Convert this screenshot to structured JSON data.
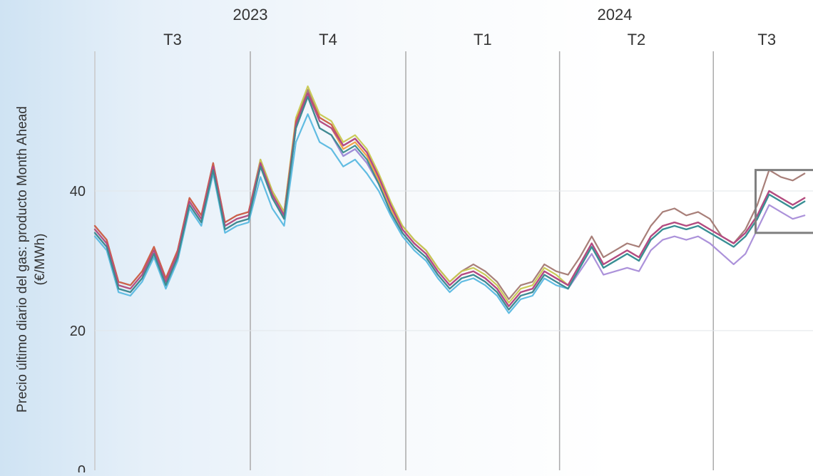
{
  "chart_data": {
    "type": "line",
    "ylabel": "Precio último diario del gas: producto Month Ahead",
    "ylabel_unit": "(€/MWh)",
    "x_range": [
      "2023-07-01",
      "2024-08-31"
    ],
    "ylim": [
      0,
      60
    ],
    "y_ticks": [
      {
        "value": 0,
        "label": "0"
      },
      {
        "value": 20,
        "label": "20"
      },
      {
        "value": 40,
        "label": "40"
      }
    ],
    "years": [
      {
        "label": "2023",
        "date": "2023-10-01"
      },
      {
        "label": "2024",
        "date": "2024-04-01"
      }
    ],
    "quarters": [
      {
        "label": "T3",
        "start": "2023-07-01",
        "end": "2023-10-01"
      },
      {
        "label": "T4",
        "start": "2023-10-01",
        "end": "2024-01-01"
      },
      {
        "label": "T1",
        "start": "2024-01-01",
        "end": "2024-04-01"
      },
      {
        "label": "T2",
        "start": "2024-04-01",
        "end": "2024-07-01"
      },
      {
        "label": "T3",
        "start": "2024-07-01",
        "end": "2024-10-01"
      }
    ],
    "grid": true,
    "legend": "none",
    "highlight_box": {
      "x0": "2024-07-26",
      "x1": "2024-08-31",
      "y0": 34,
      "y1": 43
    },
    "x": [
      "2023-07-01",
      "2023-07-08",
      "2023-07-15",
      "2023-07-22",
      "2023-07-29",
      "2023-08-05",
      "2023-08-12",
      "2023-08-19",
      "2023-08-26",
      "2023-09-02",
      "2023-09-09",
      "2023-09-16",
      "2023-09-23",
      "2023-09-30",
      "2023-10-07",
      "2023-10-14",
      "2023-10-21",
      "2023-10-28",
      "2023-11-04",
      "2023-11-11",
      "2023-11-18",
      "2023-11-25",
      "2023-12-02",
      "2023-12-09",
      "2023-12-16",
      "2023-12-23",
      "2023-12-30",
      "2024-01-06",
      "2024-01-13",
      "2024-01-20",
      "2024-01-27",
      "2024-02-03",
      "2024-02-10",
      "2024-02-17",
      "2024-02-24",
      "2024-03-02",
      "2024-03-09",
      "2024-03-16",
      "2024-03-23",
      "2024-03-30",
      "2024-04-06",
      "2024-04-13",
      "2024-04-20",
      "2024-04-27",
      "2024-05-04",
      "2024-05-11",
      "2024-05-18",
      "2024-05-25",
      "2024-06-01",
      "2024-06-08",
      "2024-06-15",
      "2024-06-22",
      "2024-06-29",
      "2024-07-06",
      "2024-07-13",
      "2024-07-20",
      "2024-07-27",
      "2024-08-03",
      "2024-08-10",
      "2024-08-17",
      "2024-08-24",
      "2024-08-31"
    ],
    "series": [
      {
        "color": "#4a90c8",
        "values": [
          34.0,
          32.0,
          26.0,
          25.5,
          27.5,
          31.0,
          26.5,
          30.5,
          38.0,
          35.5,
          43.0,
          34.5,
          35.5,
          36.0,
          43.5,
          39.0,
          36.0,
          49.0,
          53.5,
          49.0,
          48.0,
          45.0,
          46.0,
          44.0,
          41.0,
          37.0,
          34.0,
          32.0,
          30.5,
          28.0,
          26.0,
          27.5,
          28.0,
          27.0,
          25.5,
          23.0,
          25.0,
          25.5,
          28.0,
          27.0,
          26.0,
          29.0,
          32.0,
          29.0,
          30.0,
          31.0,
          30.0,
          33.0,
          34.5,
          35.0,
          34.5,
          35.0,
          34.0,
          33.0,
          32.0,
          33.5,
          36.0,
          39.5,
          38.5,
          37.5,
          38.5,
          38.0
        ]
      },
      {
        "color": "#f0a040",
        "values": [
          34.5,
          32.5,
          26.5,
          26.0,
          28.0,
          31.5,
          27.0,
          31.0,
          38.5,
          36.0,
          43.5,
          35.0,
          36.0,
          36.5,
          44.0,
          39.5,
          36.5,
          49.5,
          54.0,
          50.0,
          49.0,
          46.0,
          47.0,
          45.0,
          41.5,
          37.5,
          34.5,
          32.5,
          31.0,
          28.5,
          26.5,
          28.0,
          28.5,
          27.5,
          26.0,
          23.5,
          25.5,
          26.0,
          28.5,
          27.5,
          26.5,
          29.5,
          32.5,
          29.5,
          30.5,
          31.5,
          30.5,
          33.5,
          35.0,
          35.5,
          35.0,
          35.5,
          34.5,
          33.5,
          32.5,
          34.0,
          36.5,
          40.0,
          39.0,
          38.0,
          39.0,
          38.5
        ]
      },
      {
        "color": "#a37872",
        "values": [
          35.0,
          33.0,
          27.0,
          26.5,
          28.5,
          32.0,
          27.5,
          31.5,
          39.0,
          36.5,
          44.0,
          35.5,
          36.5,
          37.0,
          44.5,
          40.0,
          37.0,
          50.0,
          54.5,
          50.5,
          49.5,
          46.5,
          47.5,
          45.5,
          42.0,
          38.0,
          35.0,
          33.0,
          31.5,
          29.0,
          27.0,
          28.5,
          29.5,
          28.5,
          27.0,
          24.5,
          26.5,
          27.0,
          29.5,
          28.5,
          28.0,
          30.5,
          33.5,
          30.5,
          31.5,
          32.5,
          32.0,
          35.0,
          37.0,
          37.5,
          36.5,
          37.0,
          36.0,
          33.5,
          32.5,
          34.5,
          38.0,
          43.0,
          42.0,
          41.5,
          42.5,
          42.0
        ]
      },
      {
        "color": "#a88cd8",
        "values": [
          34.0,
          32.0,
          26.0,
          25.5,
          27.5,
          31.0,
          26.5,
          30.5,
          38.0,
          35.5,
          43.0,
          34.5,
          35.5,
          36.0,
          43.5,
          39.0,
          36.0,
          49.0,
          53.5,
          49.0,
          48.0,
          45.0,
          46.0,
          44.0,
          41.0,
          37.0,
          34.0,
          32.0,
          30.5,
          28.0,
          26.0,
          27.5,
          28.0,
          27.0,
          25.5,
          23.0,
          25.0,
          25.5,
          28.0,
          27.0,
          26.0,
          28.5,
          31.0,
          28.0,
          28.5,
          29.0,
          28.5,
          31.5,
          33.0,
          33.5,
          33.0,
          33.5,
          32.5,
          31.0,
          29.5,
          31.0,
          34.5,
          38.0,
          37.0,
          36.0,
          36.5,
          36.0
        ]
      },
      {
        "color": "#c8c850",
        "values": [
          34.5,
          32.5,
          26.5,
          26.0,
          28.0,
          31.5,
          27.0,
          31.0,
          38.5,
          36.0,
          43.5,
          35.0,
          36.0,
          36.5,
          44.5,
          40.0,
          37.0,
          50.5,
          55.0,
          51.0,
          50.0,
          47.0,
          48.0,
          46.0,
          42.5,
          38.5,
          35.0,
          33.0,
          31.5,
          29.0,
          27.0,
          28.5,
          29.0,
          28.0,
          26.5,
          24.0,
          26.0,
          26.5,
          29.0,
          28.0,
          26.5,
          29.5,
          32.5,
          29.5,
          30.5,
          31.5,
          30.5,
          33.5,
          35.0,
          35.5,
          35.0,
          35.5,
          34.5,
          33.5,
          32.5,
          34.0,
          36.5,
          40.0,
          39.0,
          38.0,
          39.0,
          38.5
        ]
      },
      {
        "color": "#d06048",
        "values": [
          35.0,
          33.0,
          27.0,
          26.5,
          28.5,
          32.0,
          27.5,
          31.5,
          39.0,
          36.5,
          44.0,
          35.5,
          36.5,
          37.0,
          44.0,
          39.5,
          36.5,
          50.0,
          54.0,
          50.5,
          49.5,
          46.5,
          47.5,
          45.5,
          42.0,
          38.0,
          34.5,
          32.5,
          31.0,
          28.5,
          26.5,
          28.0,
          28.5,
          27.5,
          26.0,
          23.5,
          25.5,
          26.0,
          28.5,
          27.5,
          26.5,
          29.5,
          32.5,
          29.5,
          30.5,
          31.5,
          30.5,
          33.5,
          35.0,
          35.5,
          35.0,
          35.5,
          34.5,
          33.5,
          32.5,
          34.0,
          36.5,
          40.0,
          39.0,
          38.0,
          39.0,
          38.5
        ]
      },
      {
        "color": "#b0488c",
        "values": [
          34.5,
          32.5,
          26.5,
          26.0,
          28.0,
          31.5,
          27.0,
          31.0,
          38.5,
          36.0,
          43.5,
          35.0,
          36.0,
          36.5,
          44.0,
          39.5,
          36.5,
          49.5,
          54.0,
          50.0,
          49.0,
          46.5,
          47.5,
          45.5,
          42.0,
          38.0,
          34.5,
          32.5,
          31.0,
          28.5,
          26.5,
          28.0,
          28.5,
          27.5,
          26.0,
          23.5,
          25.5,
          26.0,
          28.5,
          27.5,
          26.5,
          29.5,
          32.5,
          29.5,
          30.5,
          31.5,
          30.5,
          33.5,
          35.0,
          35.5,
          35.0,
          35.5,
          34.5,
          33.5,
          32.5,
          34.0,
          36.5,
          40.0,
          39.0,
          38.0,
          39.0,
          38.5
        ]
      },
      {
        "color": "#58b8e0",
        "values": [
          33.5,
          31.5,
          25.5,
          25.0,
          27.0,
          30.5,
          26.0,
          30.0,
          37.5,
          35.0,
          42.5,
          34.0,
          35.0,
          35.5,
          42.0,
          37.5,
          35.0,
          47.0,
          51.0,
          47.0,
          46.0,
          43.5,
          44.5,
          42.5,
          40.0,
          36.5,
          33.5,
          31.5,
          30.0,
          27.5,
          25.5,
          27.0,
          27.5,
          26.5,
          25.0,
          22.5,
          24.5,
          25.0,
          27.5,
          26.5,
          26.0,
          29.0,
          32.0,
          29.0,
          30.0,
          31.0,
          30.0,
          33.0,
          34.5,
          35.0,
          34.5,
          35.0,
          34.0,
          33.0,
          32.0,
          33.5,
          36.0,
          39.5,
          38.5,
          37.5,
          38.5,
          38.0
        ]
      },
      {
        "color": "#3a8c8c",
        "values": [
          34.0,
          32.0,
          26.0,
          25.5,
          27.5,
          31.0,
          26.5,
          30.5,
          38.0,
          35.5,
          43.0,
          34.5,
          35.5,
          36.0,
          43.5,
          39.0,
          36.0,
          49.0,
          53.5,
          49.0,
          48.0,
          45.5,
          46.5,
          44.5,
          41.0,
          37.0,
          34.0,
          32.0,
          30.5,
          28.0,
          26.0,
          27.5,
          28.0,
          27.0,
          25.5,
          23.0,
          25.0,
          25.5,
          28.0,
          27.0,
          26.0,
          29.0,
          32.0,
          29.0,
          30.0,
          31.0,
          30.0,
          33.0,
          34.5,
          35.0,
          34.5,
          35.0,
          34.0,
          33.0,
          32.0,
          33.5,
          36.0,
          39.5,
          38.5,
          37.5,
          38.5,
          38.0
        ]
      }
    ]
  }
}
